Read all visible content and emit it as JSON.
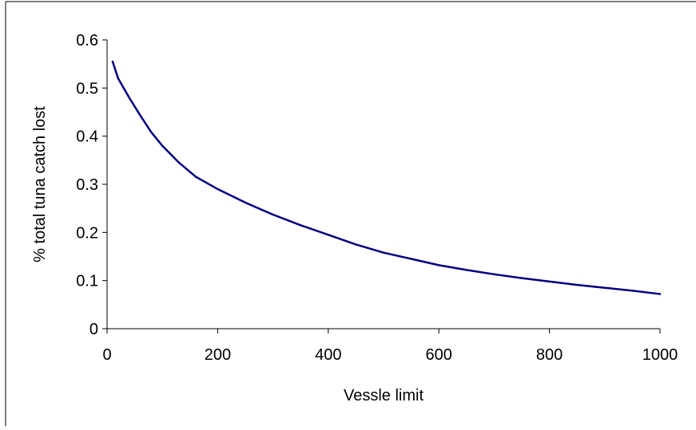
{
  "chart_data": {
    "type": "line",
    "title": "",
    "xlabel": "Vessle limit",
    "ylabel": "% total tuna catch lost",
    "xlim": [
      0,
      1000
    ],
    "ylim": [
      0,
      0.6
    ],
    "x_ticks": [
      0,
      200,
      400,
      600,
      800,
      1000
    ],
    "y_ticks": [
      0,
      0.1,
      0.2,
      0.3,
      0.4,
      0.5,
      0.6
    ],
    "x_tick_labels": [
      "0",
      "200",
      "400",
      "600",
      "800",
      "1000"
    ],
    "y_tick_labels": [
      "0",
      "0.1",
      "0.2",
      "0.3",
      "0.4",
      "0.5",
      "0.6"
    ],
    "grid": false,
    "legend": "none",
    "series": [
      {
        "color": "#000080",
        "x": [
          10,
          20,
          40,
          60,
          80,
          100,
          130,
          160,
          200,
          250,
          300,
          350,
          400,
          450,
          500,
          550,
          600,
          650,
          700,
          750,
          800,
          850,
          900,
          950,
          1000
        ],
        "y": [
          0.555,
          0.52,
          0.48,
          0.443,
          0.408,
          0.38,
          0.345,
          0.316,
          0.29,
          0.262,
          0.237,
          0.215,
          0.195,
          0.175,
          0.158,
          0.145,
          0.132,
          0.122,
          0.113,
          0.105,
          0.098,
          0.091,
          0.085,
          0.079,
          0.072
        ]
      }
    ]
  }
}
